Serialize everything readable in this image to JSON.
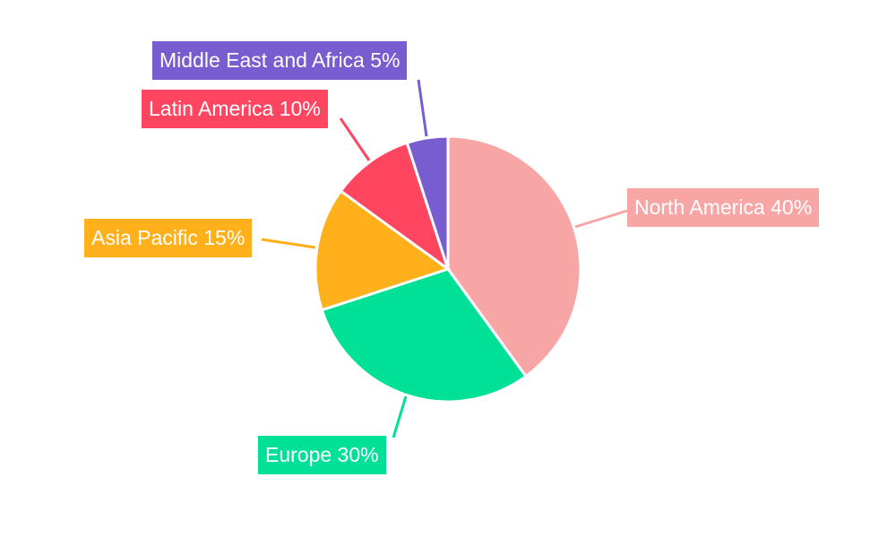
{
  "chart_data": {
    "type": "pie",
    "title": "",
    "start_angle": "top, clockwise",
    "slices": [
      {
        "label": "North America",
        "value": 40,
        "text": "North America 40%",
        "color": "#F8A5A5"
      },
      {
        "label": "Europe",
        "value": 30,
        "text": "Europe 30%",
        "color": "#00E096"
      },
      {
        "label": "Asia Pacific",
        "value": 15,
        "text": "Asia Pacific 15%",
        "color": "#FFB01A"
      },
      {
        "label": "Latin America",
        "value": 10,
        "text": "Latin America 10%",
        "color": "#FF4560"
      },
      {
        "label": "Middle East and Africa",
        "value": 5,
        "text": "Middle East and Africa 5%",
        "color": "#775DD0"
      }
    ],
    "legend": "none, outside labels with leader lines"
  }
}
